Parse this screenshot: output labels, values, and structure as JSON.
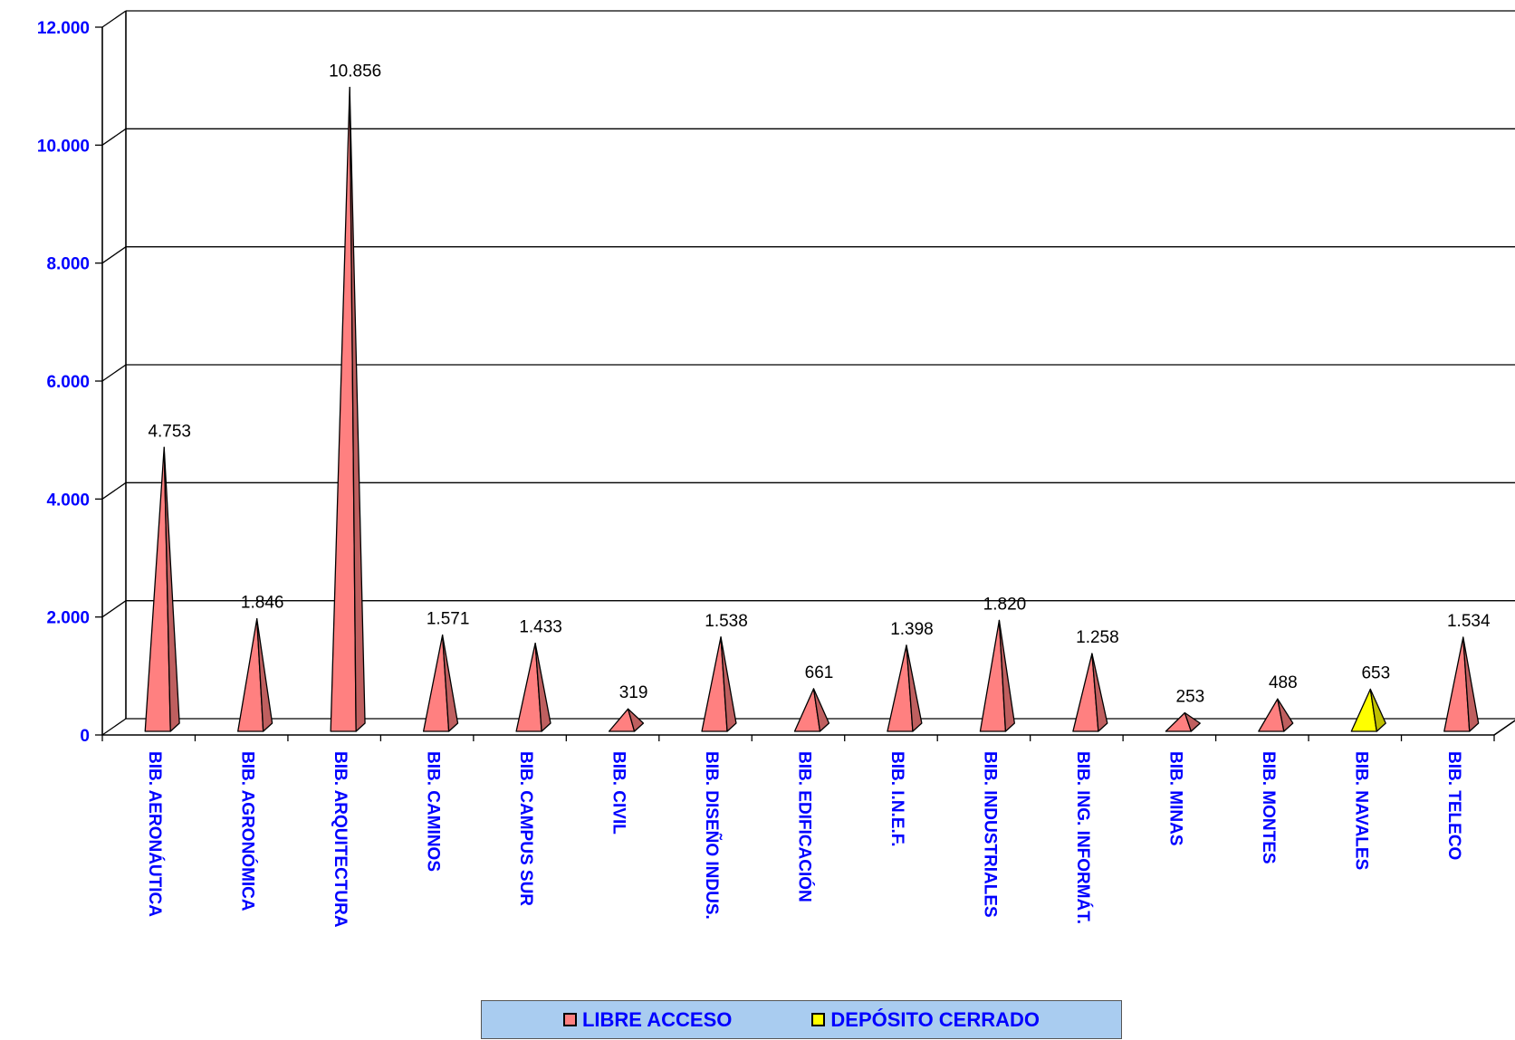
{
  "chart_data": {
    "type": "bar",
    "style": "3d-pyramid",
    "title": "",
    "xlabel": "",
    "ylabel": "",
    "ylim": [
      0,
      12000
    ],
    "yticks": [
      {
        "value": 0,
        "label": "0"
      },
      {
        "value": 2000,
        "label": "2.000"
      },
      {
        "value": 4000,
        "label": "4.000"
      },
      {
        "value": 6000,
        "label": "6.000"
      },
      {
        "value": 8000,
        "label": "8.000"
      },
      {
        "value": 10000,
        "label": "10.000"
      },
      {
        "value": 12000,
        "label": "12.000"
      }
    ],
    "grid": true,
    "legend_position": "bottom",
    "categories": [
      "BIB. AERONÁUTICA",
      "BIB. AGRONÓMICA",
      "BIB. ARQUITECTURA",
      "BIB. CAMINOS",
      "BIB. CAMPUS SUR",
      "BIB. CIVIL",
      "BIB. DISEÑO INDUS.",
      "BIB. EDIFICACIÓN",
      "BIB. I.N.E.F.",
      "BIB. INDUSTRIALES",
      "BIB. ING. INFORMÁT.",
      "BIB. MINAS",
      "BIB. MONTES",
      "BIB. NAVALES",
      "BIB. TELECO"
    ],
    "series": [
      {
        "name": "LIBRE ACCESO",
        "color": "#FF8080",
        "side_color": "#BF5F5F",
        "values": [
          4753,
          1846,
          10856,
          1571,
          1433,
          319,
          1538,
          661,
          1398,
          1820,
          1258,
          253,
          488,
          null,
          1534
        ],
        "labels": [
          "4.753",
          "1.846",
          "10.856",
          "1.571",
          "1.433",
          "319",
          "1.538",
          "661",
          "1.398",
          "1.820",
          "1.258",
          "253",
          "488",
          null,
          "1.534"
        ]
      },
      {
        "name": "DEPÓSITO CERRADO",
        "color": "#FFFF00",
        "side_color": "#BFBF00",
        "values": [
          null,
          null,
          null,
          null,
          null,
          null,
          null,
          null,
          null,
          null,
          null,
          null,
          null,
          653,
          null
        ],
        "labels": [
          null,
          null,
          null,
          null,
          null,
          null,
          null,
          null,
          null,
          null,
          null,
          null,
          null,
          "653",
          null
        ]
      }
    ],
    "axis_label_color": "#0000FF"
  }
}
